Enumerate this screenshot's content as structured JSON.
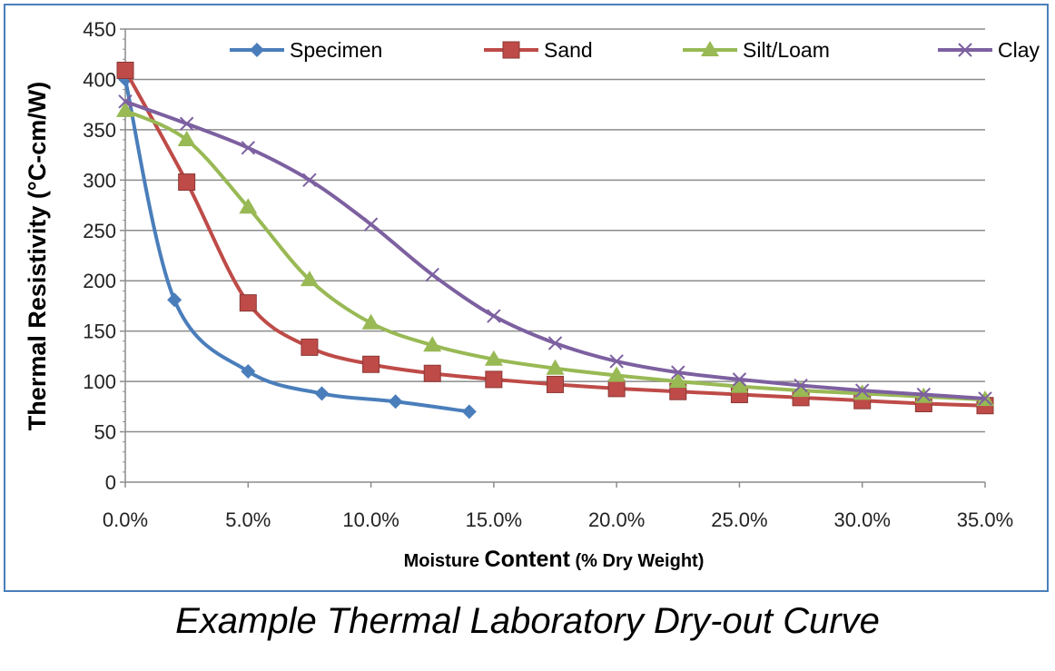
{
  "caption": "Example Thermal Laboratory Dry-out Curve",
  "chart_data": {
    "type": "line",
    "smooth": true,
    "ylabel": "Thermal Resistivity (°C-cm/W)",
    "xlabel_parts": [
      "Moisture ",
      "Content",
      " (% Dry Weight)"
    ],
    "xlim": [
      0,
      35
    ],
    "ylim": [
      0,
      450
    ],
    "x_ticks": [
      0,
      5,
      10,
      15,
      20,
      25,
      30,
      35
    ],
    "x_tick_labels": [
      "0.0%",
      "5.0%",
      "10.0%",
      "15.0%",
      "20.0%",
      "25.0%",
      "30.0%",
      "35.0%"
    ],
    "y_ticks": [
      0,
      50,
      100,
      150,
      200,
      250,
      300,
      350,
      400,
      450
    ],
    "y_tick_labels": [
      "0",
      "50",
      "100",
      "150",
      "200",
      "250",
      "300",
      "350",
      "400",
      "450"
    ],
    "grid": "horizontal",
    "legend_position": "top",
    "series": [
      {
        "name": "Specimen",
        "color": "#4a7ebb",
        "marker": "diamond",
        "points": [
          [
            0,
            400
          ],
          [
            2,
            181
          ],
          [
            5,
            110
          ],
          [
            8,
            88
          ],
          [
            11,
            80
          ],
          [
            14,
            70
          ]
        ]
      },
      {
        "name": "Sand",
        "color": "#be4b48",
        "marker": "square",
        "points": [
          [
            0,
            409
          ],
          [
            2.5,
            298
          ],
          [
            5,
            178
          ],
          [
            7.5,
            134
          ],
          [
            10,
            117
          ],
          [
            12.5,
            108
          ],
          [
            15,
            102
          ],
          [
            17.5,
            97
          ],
          [
            20,
            93
          ],
          [
            22.5,
            90
          ],
          [
            25,
            87
          ],
          [
            27.5,
            84
          ],
          [
            30,
            81
          ],
          [
            32.5,
            78
          ],
          [
            35,
            76
          ]
        ]
      },
      {
        "name": "Silt/Loam",
        "color": "#98b954",
        "marker": "triangle",
        "points": [
          [
            0,
            369
          ],
          [
            2.5,
            340
          ],
          [
            5,
            273
          ],
          [
            7.5,
            201
          ],
          [
            10,
            158
          ],
          [
            12.5,
            136
          ],
          [
            15,
            122
          ],
          [
            17.5,
            113
          ],
          [
            20,
            106
          ],
          [
            22.5,
            100
          ],
          [
            25,
            95
          ],
          [
            27.5,
            91
          ],
          [
            30,
            88
          ],
          [
            32.5,
            85
          ],
          [
            35,
            82
          ]
        ]
      },
      {
        "name": "Clay",
        "color": "#7d60a0",
        "marker": "x",
        "points": [
          [
            0,
            378
          ],
          [
            2.5,
            356
          ],
          [
            5,
            332
          ],
          [
            7.5,
            300
          ],
          [
            10,
            256
          ],
          [
            12.5,
            206
          ],
          [
            15,
            165
          ],
          [
            17.5,
            138
          ],
          [
            20,
            120
          ],
          [
            22.5,
            109
          ],
          [
            25,
            102
          ],
          [
            27.5,
            96
          ],
          [
            30,
            91
          ],
          [
            32.5,
            87
          ],
          [
            35,
            83
          ]
        ]
      }
    ]
  }
}
